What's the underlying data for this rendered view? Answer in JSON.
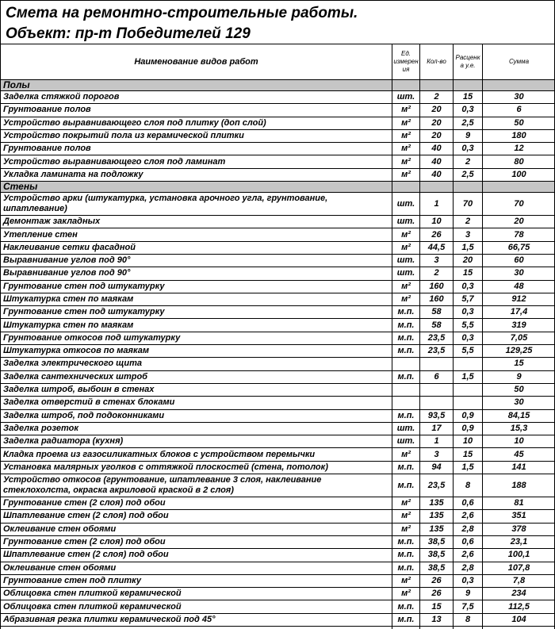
{
  "page": {
    "title": "Смета на ремонтно-строительные работы.",
    "subtitle": "Объект: пр-т Победителей 129"
  },
  "colors": {
    "section_bg": "#c6c6c6",
    "border": "#000000",
    "background": "#ffffff"
  },
  "table": {
    "headers": {
      "name": "Наименование видов работ",
      "unit": "Ед.\nизмерен\nия",
      "qty": "Кол-во",
      "rate": "Расценк\nа у.е.",
      "sum": "Сумма"
    },
    "sections": [
      {
        "label": "Полы",
        "rows": [
          [
            "Заделка стяжкой порогов",
            "шт.",
            "2",
            "15",
            "30"
          ],
          [
            "Грунтование полов",
            "м²",
            "20",
            "0,3",
            "6"
          ],
          [
            "Устройство выравнивающего слоя под плитку (доп слой)",
            "м²",
            "20",
            "2,5",
            "50"
          ],
          [
            "Устройство покрытий пола из керамической плитки",
            "м²",
            "20",
            "9",
            "180"
          ],
          [
            "Грунтование полов",
            "м²",
            "40",
            "0,3",
            "12"
          ],
          [
            "Устройство выравнивающего слоя под ламинат",
            "м²",
            "40",
            "2",
            "80"
          ],
          [
            "Укладка ламината на подложку",
            "м²",
            "40",
            "2,5",
            "100"
          ]
        ]
      },
      {
        "label": "Стены",
        "rows": [
          [
            "Устройство арки (штукатурка, установка арочного угла, грунтование, шпатлевание)",
            "шт.",
            "1",
            "70",
            "70"
          ],
          [
            "Демонтаж закладных",
            "шт.",
            "10",
            "2",
            "20"
          ],
          [
            "Утепление стен",
            "м²",
            "26",
            "3",
            "78"
          ],
          [
            "Наклеивание сетки фасадной",
            "м²",
            "44,5",
            "1,5",
            "66,75"
          ],
          [
            "Выравнивание углов под 90°",
            "шт.",
            "3",
            "20",
            "60"
          ],
          [
            "Выравнивание углов под 90°",
            "шт.",
            "2",
            "15",
            "30"
          ],
          [
            "Грунтование стен под штукатурку",
            "м²",
            "160",
            "0,3",
            "48"
          ],
          [
            "Штукатурка стен по маякам",
            "м²",
            "160",
            "5,7",
            "912"
          ],
          [
            "Грунтование стен под штукатурку",
            "м.п.",
            "58",
            "0,3",
            "17,4"
          ],
          [
            "Штукатурка стен по маякам",
            "м.п.",
            "58",
            "5,5",
            "319"
          ],
          [
            "Грунтование откосов под штукатурку",
            "м.п.",
            "23,5",
            "0,3",
            "7,05"
          ],
          [
            "Штукатурка откосов по маякам",
            "м.п.",
            "23,5",
            "5,5",
            "129,25"
          ],
          [
            "Заделка электрического щита",
            "",
            "",
            "",
            "15"
          ],
          [
            "Заделка сантехнических штроб",
            "м.п.",
            "6",
            "1,5",
            "9"
          ],
          [
            "Заделка штроб, выбоин в стенах",
            "",
            "",
            "",
            "50"
          ],
          [
            "Заделка отверстий в стенах блоками",
            "",
            "",
            "",
            "30"
          ],
          [
            "Заделка штроб, под подоконниками",
            "м.п.",
            "93,5",
            "0,9",
            "84,15"
          ],
          [
            "Заделка розеток",
            "шт.",
            "17",
            "0,9",
            "15,3"
          ],
          [
            "Заделка радиатора (кухня)",
            "шт.",
            "1",
            "10",
            "10"
          ],
          [
            "Кладка проема из газосиликатных блоков с устройством перемычки",
            "м²",
            "3",
            "15",
            "45"
          ],
          [
            "Установка малярных уголков с оттяжкой плоскостей (стена, потолок)",
            "м.п.",
            "94",
            "1,5",
            "141"
          ],
          [
            "Устройство откосов (грунтование, шпатлевание 3 слоя, наклеивание стеклохолста, окраска акриловой краской в 2 слоя)",
            "м.п.",
            "23,5",
            "8",
            "188"
          ],
          [
            "Грунтование стен (2 слоя) под обои",
            "м²",
            "135",
            "0,6",
            "81"
          ],
          [
            "Шпатлевание стен (2 слоя) под обои",
            "м²",
            "135",
            "2,6",
            "351"
          ],
          [
            "Оклеивание стен обоями",
            "м²",
            "135",
            "2,8",
            "378"
          ],
          [
            "Грунтование стен (2 слоя) под обои",
            "м.п.",
            "38,5",
            "0,6",
            "23,1"
          ],
          [
            "Шпатлевание стен (2 слоя) под обои",
            "м.п.",
            "38,5",
            "2,6",
            "100,1"
          ],
          [
            "Оклеивание стен обоями",
            "м.п.",
            "38,5",
            "2,8",
            "107,8"
          ],
          [
            "Грунтование стен под плитку",
            "м²",
            "26",
            "0,3",
            "7,8"
          ],
          [
            "Облицовка стен плиткой керамической",
            "м²",
            "26",
            "9",
            "234"
          ],
          [
            "Облицовка стен плиткой керамической",
            "м.п.",
            "15",
            "7,5",
            "112,5"
          ],
          [
            "Абразивная резка плитки керамической под 45°",
            "м.п.",
            "13",
            "8",
            "104"
          ]
        ]
      }
    ],
    "partial_row": [
      "",
      "",
      "",
      "",
      ""
    ]
  }
}
